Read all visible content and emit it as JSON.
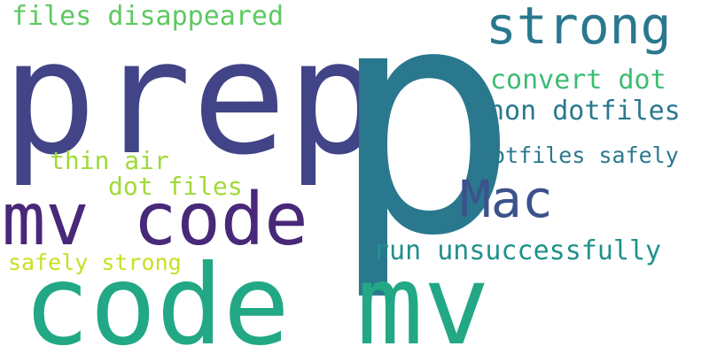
{
  "words": {
    "prep": {
      "text": "prep",
      "color": "#414487"
    },
    "p": {
      "text": "p",
      "color": "#2a788e"
    },
    "strong": {
      "text": "strong",
      "color": "#2a788e"
    },
    "files_disappeared": {
      "text": "files disappeared",
      "color": "#5ec962"
    },
    "convert_dot": {
      "text": "convert dot",
      "color": "#3dbc74"
    },
    "non_dotfiles": {
      "text": "non dotfiles",
      "color": "#2a788e"
    },
    "dotfiles_safely": {
      "text": "dotfiles safely",
      "color": "#2a788e"
    },
    "thin_air": {
      "text": "thin air",
      "color": "#a0da39"
    },
    "dot_files": {
      "text": "dot files",
      "color": "#a0da39"
    },
    "mac": {
      "text": "Mac",
      "color": "#3b528b"
    },
    "mv_code": {
      "text": "mv code",
      "color": "#482878"
    },
    "run_unsuccessfully": {
      "text": "run unsuccessfully",
      "color": "#21918c"
    },
    "safely_strong": {
      "text": "safely strong",
      "color": "#c8e020"
    },
    "code_mv": {
      "text": "code mv",
      "color": "#22a884"
    }
  }
}
